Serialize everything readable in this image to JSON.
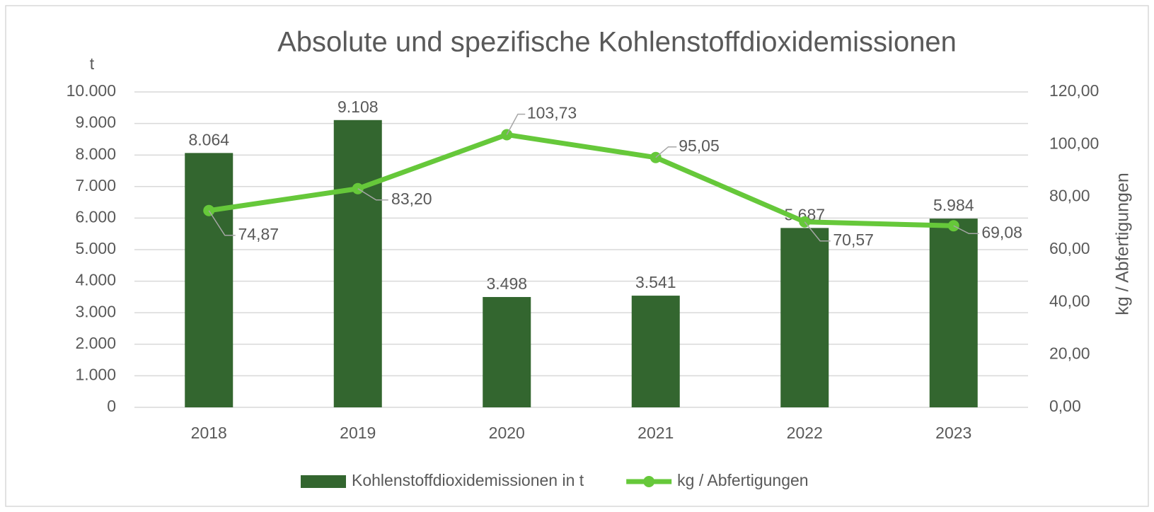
{
  "chart_data": {
    "type": "combo",
    "title": "Absolute und spezifische Kohlenstoffdioxidemissionen",
    "y_label": "t",
    "y2_label": "kg / Abfertigungen",
    "categories": [
      "2018",
      "2019",
      "2020",
      "2021",
      "2022",
      "2023"
    ],
    "series": [
      {
        "name": "Kohlenstoffdioxidemissionen in t",
        "type": "bar",
        "color": "#33662f",
        "values": [
          8064,
          9108,
          3498,
          3541,
          5687,
          5984
        ],
        "value_labels": [
          "8.064",
          "9.108",
          "3.498",
          "3.541",
          "5.687",
          "5.984"
        ]
      },
      {
        "name": "kg / Abfertigungen",
        "type": "line",
        "axis": "y2",
        "color": "#66c83a",
        "values": [
          74.87,
          83.2,
          103.73,
          95.05,
          70.57,
          69.08
        ],
        "value_labels": [
          "74,87",
          "83,20",
          "103,73",
          "95,05",
          "70,57",
          "69,08"
        ]
      }
    ],
    "ylim": [
      0,
      10000
    ],
    "yticks": [
      0,
      {
        "value": 1000,
        "label": "1.000"
      },
      {
        "value": 2000,
        "label": "2.000"
      },
      {
        "value": 3000,
        "label": "3.000"
      },
      {
        "value": 4000,
        "label": "4.000"
      },
      {
        "value": 5000,
        "label": "5.000"
      },
      {
        "value": 6000,
        "label": "6.000"
      },
      {
        "value": 7000,
        "label": "7.000"
      },
      {
        "value": 8000,
        "label": "8.000"
      },
      {
        "value": 9000,
        "label": "9.000"
      },
      {
        "value": 10000,
        "label": "10.000"
      }
    ],
    "y2lim": [
      0,
      120
    ],
    "y2ticks": [
      {
        "value": 0,
        "label": "0,00"
      },
      {
        "value": 20,
        "label": "20,00"
      },
      {
        "value": 40,
        "label": "40,00"
      },
      {
        "value": 60,
        "label": "60,00"
      },
      {
        "value": 80,
        "label": "80,00"
      },
      {
        "value": 100,
        "label": "100,00"
      },
      {
        "value": 120,
        "label": "120,00"
      }
    ],
    "grid": true,
    "legend": "bottom"
  }
}
